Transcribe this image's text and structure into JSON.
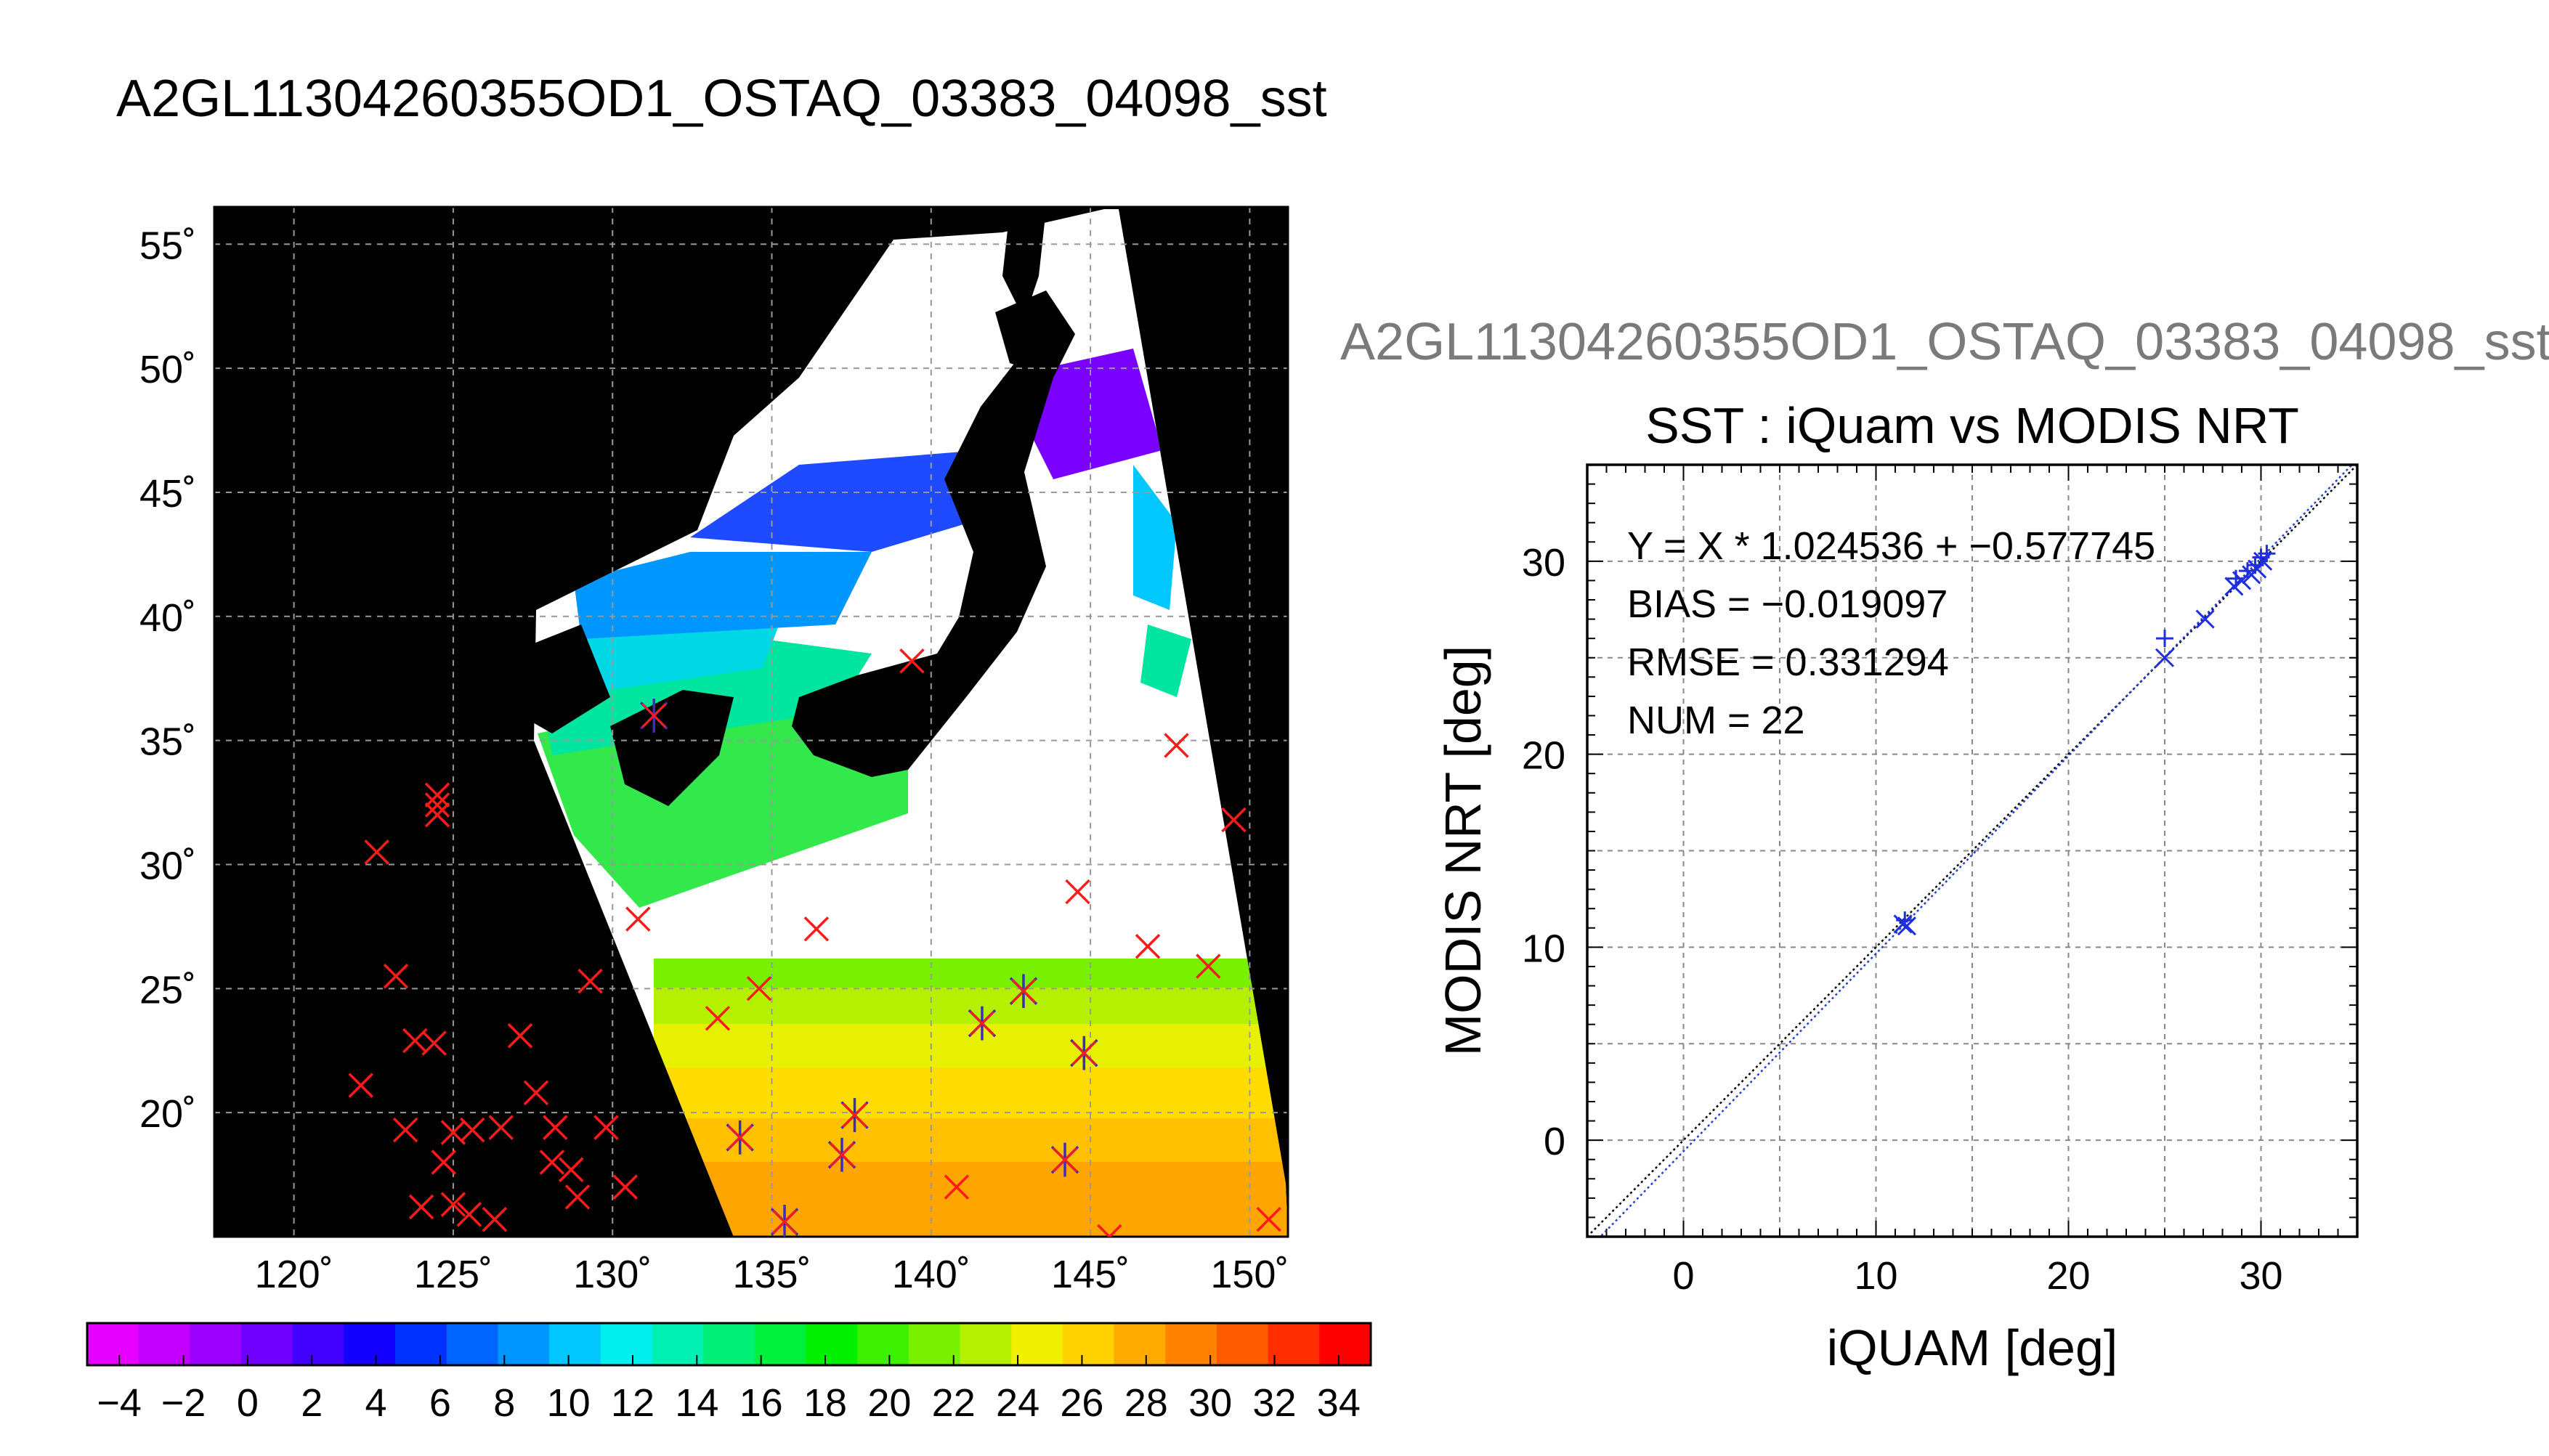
{
  "page_title": "A2GL11304260355OD1_OSTAQ_03383_04098_sst",
  "chart_data": [
    {
      "type": "map",
      "lat_ticks": [
        "55˚",
        "50˚",
        "45˚",
        "40˚",
        "35˚",
        "30˚",
        "25˚",
        "20˚"
      ],
      "lon_ticks": [
        "120˚",
        "125˚",
        "130˚",
        "135˚",
        "140˚",
        "145˚",
        "150˚"
      ],
      "lat_values": [
        55,
        50,
        45,
        40,
        35,
        30,
        25,
        20
      ],
      "lon_values": [
        120,
        125,
        130,
        135,
        140,
        145,
        150
      ],
      "lat_range": [
        15,
        56.5
      ],
      "lon_range": [
        117.5,
        151.2
      ],
      "grid": true,
      "colorbar": {
        "range": [
          -5,
          35
        ],
        "tick_labels": [
          "−4",
          "−2",
          "0",
          "2",
          "4",
          "6",
          "8",
          "10",
          "12",
          "14",
          "16",
          "18",
          "20",
          "22",
          "24",
          "26",
          "28",
          "30",
          "32",
          "34"
        ],
        "tick_values": [
          -4,
          -2,
          0,
          2,
          4,
          6,
          8,
          10,
          12,
          14,
          16,
          18,
          20,
          22,
          24,
          26,
          28,
          30,
          32,
          34
        ],
        "colors": [
          "#e600ff",
          "#c300ff",
          "#9b00ff",
          "#6f00ff",
          "#4100ff",
          "#1400ff",
          "#0032ff",
          "#0064ff",
          "#0096ff",
          "#00c8ff",
          "#00f0f0",
          "#00f0b4",
          "#00f078",
          "#00f03c",
          "#00f000",
          "#3cf000",
          "#78f000",
          "#b4f000",
          "#f0f000",
          "#ffd200",
          "#ffaa00",
          "#ff8200",
          "#ff5a00",
          "#ff2d00",
          "#ff0000"
        ]
      },
      "buoys_red_x": [
        [
          122.6,
          30.5
        ],
        [
          123.2,
          25.5
        ],
        [
          123.8,
          22.9
        ],
        [
          124.4,
          22.8
        ],
        [
          122.1,
          21.1
        ],
        [
          123.5,
          19.3
        ],
        [
          125.0,
          19.2
        ],
        [
          124.7,
          18.0
        ],
        [
          125.6,
          19.3
        ],
        [
          126.5,
          19.4
        ],
        [
          127.1,
          23.1
        ],
        [
          127.6,
          20.8
        ],
        [
          128.2,
          19.4
        ],
        [
          128.1,
          18.0
        ],
        [
          128.7,
          17.7
        ],
        [
          128.9,
          16.6
        ],
        [
          129.3,
          25.3
        ],
        [
          129.8,
          19.4
        ],
        [
          130.4,
          17.0
        ],
        [
          124.0,
          16.2
        ],
        [
          125.0,
          16.3
        ],
        [
          125.5,
          15.9
        ],
        [
          126.3,
          15.7
        ],
        [
          124.5,
          32.8
        ],
        [
          124.5,
          32.4
        ],
        [
          124.5,
          32.0
        ],
        [
          130.8,
          27.8
        ],
        [
          133.3,
          23.8
        ],
        [
          134.6,
          25.0
        ],
        [
          136.4,
          27.4
        ],
        [
          140.8,
          17.0
        ],
        [
          139.4,
          38.2
        ],
        [
          144.6,
          28.9
        ],
        [
          146.8,
          26.7
        ],
        [
          147.7,
          34.8
        ],
        [
          148.7,
          25.9
        ],
        [
          149.5,
          31.8
        ],
        [
          150.6,
          15.7
        ],
        [
          145.6,
          15.0
        ]
      ],
      "buoys_matched": [
        [
          131.3,
          36.0
        ],
        [
          134.0,
          19.0
        ],
        [
          135.4,
          15.6
        ],
        [
          137.2,
          18.3
        ],
        [
          137.6,
          19.9
        ],
        [
          141.6,
          23.6
        ],
        [
          142.9,
          24.9
        ],
        [
          144.2,
          18.1
        ],
        [
          144.8,
          22.4
        ]
      ]
    },
    {
      "type": "scatter",
      "overlay_title": "A2GL11304260355OD1_OSTAQ_03383_04098_sst",
      "title": "SST : iQuam vs MODIS NRT",
      "xlabel": "iQUAM [deg]",
      "ylabel": "MODIS NRT [deg]",
      "xlim": [
        -5,
        35
      ],
      "ylim": [
        -5,
        35
      ],
      "xticks": [
        0,
        10,
        20,
        30
      ],
      "yticks": [
        0,
        10,
        20,
        30
      ],
      "grid": true,
      "fit": {
        "slope": 1.024536,
        "intercept": -0.577745
      },
      "stats": [
        "Y = X * 1.024536 + −0.577745",
        "BIAS = −0.019097",
        "RMSE = 0.331294",
        "NUM = 22"
      ],
      "x_markers": [
        [
          11.4,
          11.2
        ],
        [
          11.6,
          11.1
        ],
        [
          25.0,
          25.0
        ],
        [
          27.1,
          27.0
        ],
        [
          28.6,
          28.7
        ],
        [
          29.0,
          29.0
        ],
        [
          29.5,
          29.3
        ],
        [
          29.8,
          29.6
        ],
        [
          30.1,
          30.0
        ]
      ],
      "plus_markers": [
        [
          11.5,
          11.4
        ],
        [
          25.0,
          26.0
        ],
        [
          28.7,
          29.1
        ],
        [
          29.3,
          29.5
        ],
        [
          29.7,
          29.8
        ],
        [
          30.0,
          30.2
        ],
        [
          30.3,
          30.4
        ]
      ]
    }
  ]
}
